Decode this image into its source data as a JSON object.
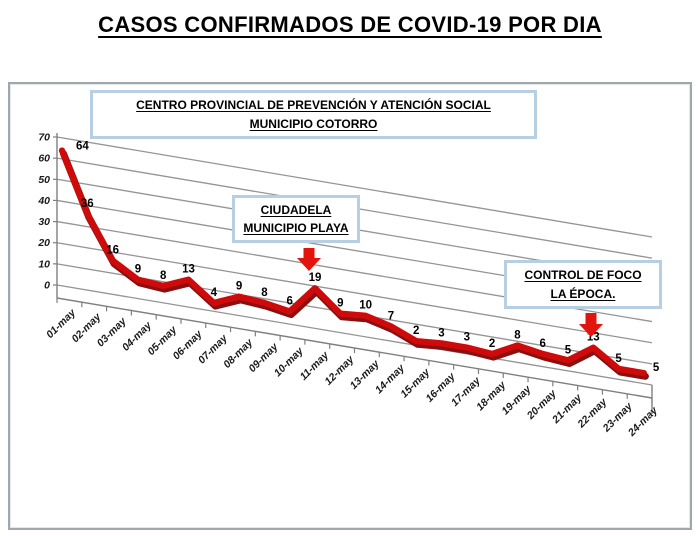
{
  "title": "CASOS CONFIRMADOS DE COVID-19 POR DIA",
  "annotations": {
    "header": {
      "line1": "CENTRO PROVINCIAL DE PREVENCIÓN Y ATENCIÓN SOCIAL",
      "line2": "MUNICIPIO COTORRO"
    },
    "ciudadela": {
      "line1": "CIUDADELA",
      "line2": "MUNICIPIO PLAYA"
    },
    "control": {
      "line1": "CONTROL DE FOCO",
      "line2": "LA ÉPOCA."
    }
  },
  "colors": {
    "line": "#cf0a0a",
    "line_shadow": "#8c0e0e",
    "arrow": "#e3140e",
    "grid": "#949494",
    "axis": "#7f7f7f",
    "box_border": "#b7cfe3",
    "text": "#000000"
  },
  "chart_data": {
    "type": "line",
    "style": "3d-skewed-perspective",
    "title": "",
    "xlabel": "",
    "ylabel": "",
    "x": [
      "01-may",
      "02-may",
      "03-may",
      "04-may",
      "05-may",
      "06-may",
      "07-may",
      "08-may",
      "09-may",
      "10-may",
      "11-may",
      "12-may",
      "13-may",
      "14-may",
      "15-may",
      "16-may",
      "17-may",
      "18-may",
      "19-may",
      "20-may",
      "21-may",
      "22-may",
      "23-may",
      "24-may"
    ],
    "series": [
      {
        "name": "Casos confirmados",
        "values": [
          64,
          36,
          16,
          9,
          8,
          13,
          4,
          9,
          8,
          6,
          19,
          9,
          10,
          7,
          2,
          3,
          3,
          2,
          8,
          6,
          5,
          13,
          5,
          5
        ]
      }
    ],
    "yticks": [
      0,
      10,
      20,
      30,
      40,
      50,
      60,
      70
    ],
    "ylim": [
      0,
      70
    ],
    "grid": true,
    "data_labels": true,
    "legend": false
  }
}
